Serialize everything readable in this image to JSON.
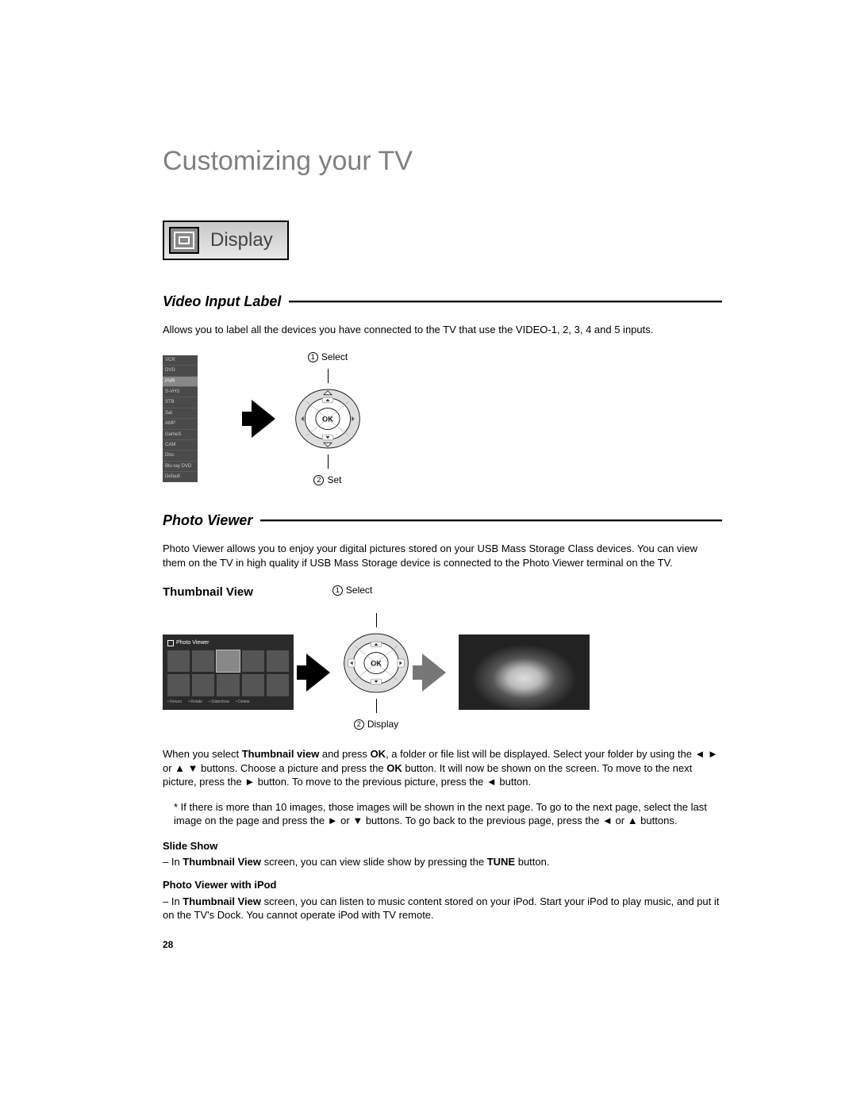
{
  "page": {
    "title": "Customizing your TV",
    "page_number": "28"
  },
  "display_badge": {
    "label": "Display"
  },
  "video_input": {
    "heading": "Video Input Label",
    "description": "Allows you to label all the devices you have connected to the TV that use the VIDEO-1, 2, 3, 4 and 5 inputs.",
    "menu_items": [
      "VCR",
      "DVD",
      "PVR",
      "S-VHS",
      "STB",
      "Sat",
      "AMP",
      "GameS",
      "CAM",
      "Disc",
      "Blu-ray DVD",
      "Default"
    ],
    "selected_index": 2,
    "step1": "Select",
    "step2": "Set",
    "ok_label": "OK"
  },
  "photo_viewer": {
    "heading": "Photo Viewer",
    "description": "Photo Viewer allows you to enjoy your digital pictures stored on your USB Mass Storage Class devices.  You can view them on the TV in high quality if USB Mass Storage device is connected to the Photo Viewer terminal on the TV.",
    "thumb_heading": "Thumbnail View",
    "thumb_title": "Photo Viewer",
    "thumb_footer": [
      "Return",
      "Rotate",
      "Slideshow",
      "Delete"
    ],
    "step1": "Select",
    "step2": "Display",
    "ok_label": "OK",
    "para1_pre": "When you select ",
    "para1_b1": "Thumbnail view",
    "para1_mid1": " and press ",
    "para1_b2": "OK",
    "para1_mid2": ", a folder or file list will be displayed.  Select your folder by using the ◄ ► or ▲ ▼ buttons.  Choose a picture and press the ",
    "para1_b3": "OK",
    "para1_mid3": " button.  It will now be shown on the screen.  To move to the next picture, press the ► button.  To move to the previous picture, press the ◄ button.",
    "para2": "* If there is more than 10 images, those images will be shown in the next page.  To go to the next page, select the last image on the page and press the ► or ▼ buttons.  To go back to the previous page, press the ◄ or ▲ buttons.",
    "slide_heading": "Slide Show",
    "slide_pre": "– In ",
    "slide_b1": "Thumbnail View",
    "slide_mid": " screen, you can view slide show by pressing the ",
    "slide_b2": "TUNE",
    "slide_post": " button.",
    "ipod_heading": "Photo Viewer with iPod",
    "ipod_pre": "– In ",
    "ipod_b1": "Thumbnail View",
    "ipod_post": " screen, you can listen to music content stored on your iPod.  Start your iPod to play music, and put it on the TV's Dock. You cannot operate iPod with TV remote."
  },
  "colors": {
    "title_gray": "#808080",
    "dark_bg": "#2a2a2a"
  }
}
